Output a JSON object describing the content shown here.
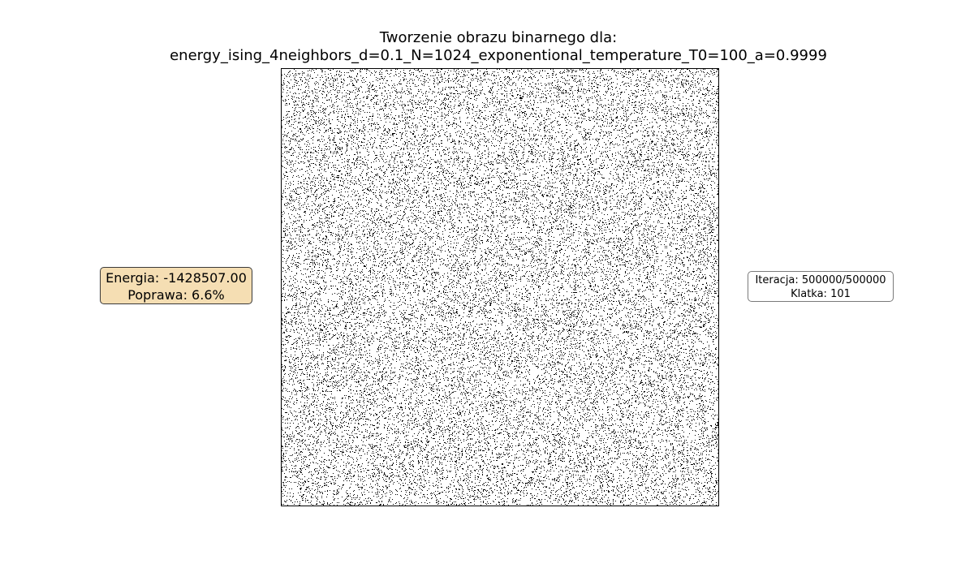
{
  "chart_data": {
    "type": "heatmap",
    "title_line1": "Tworzenie obrazu binarnego dla:",
    "title_line2": "energy_ising_4neighbors_d=0.1_N=1024_exponentional_temperature_T0=100_a=0.9999",
    "image_description": "binary image (black/white pixels), random noise pattern",
    "image_size": [
      1024,
      1024
    ],
    "black_pixel_fraction": 0.1,
    "axes": "off",
    "colors": {
      "on": "#000000",
      "off": "#ffffff"
    }
  },
  "energy_box": {
    "energy_label": "Energia: -1428507.00",
    "improvement_label": "Poprawa: 6.6%",
    "background": "#f5deb3"
  },
  "iteration_box": {
    "iteration_label": "Iteracja: 500000/500000",
    "frame_label": "Klatka: 101"
  }
}
